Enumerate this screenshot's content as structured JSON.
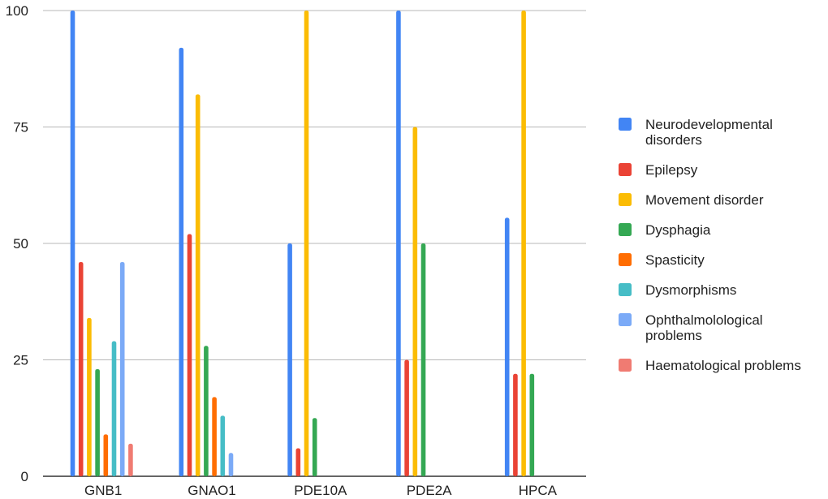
{
  "chart_data": {
    "type": "bar",
    "title": "",
    "xlabel": "",
    "ylabel": "",
    "ylim": [
      0,
      100
    ],
    "yticks": [
      0,
      25,
      50,
      75,
      100
    ],
    "grid": true,
    "legend_position": "right",
    "categories": [
      "GNB1",
      "GNAO1",
      "PDE10A",
      "PDE2A",
      "HPCA"
    ],
    "series": [
      {
        "name": "Neurodevelopmental disorders",
        "name_lines": [
          "Neurodevelopmental",
          "disorders"
        ],
        "color": "#4285F4",
        "values": [
          100,
          92,
          50,
          100,
          55.5
        ]
      },
      {
        "name": "Epilepsy",
        "name_lines": [
          "Epilepsy"
        ],
        "color": "#EA4335",
        "values": [
          46,
          52,
          6,
          25,
          22
        ]
      },
      {
        "name": "Movement disorder",
        "name_lines": [
          "Movement disorder"
        ],
        "color": "#FBBC04",
        "values": [
          34,
          82,
          100,
          75,
          100
        ]
      },
      {
        "name": "Dysphagia",
        "name_lines": [
          "Dysphagia"
        ],
        "color": "#34A853",
        "values": [
          23,
          28,
          12.5,
          50,
          22
        ]
      },
      {
        "name": "Spasticity",
        "name_lines": [
          "Spasticity"
        ],
        "color": "#FF6D01",
        "values": [
          9,
          17,
          0,
          0,
          0
        ]
      },
      {
        "name": "Dysmorphisms",
        "name_lines": [
          "Dysmorphisms"
        ],
        "color": "#46BDC6",
        "values": [
          29,
          13,
          0,
          0,
          0
        ]
      },
      {
        "name": "Ophthalmolological problems",
        "name_lines": [
          "Ophthalmolological",
          "problems"
        ],
        "color": "#7BAAF7",
        "values": [
          46,
          5,
          0,
          0,
          0
        ]
      },
      {
        "name": "Haematological problems",
        "name_lines": [
          "Haematological problems"
        ],
        "color": "#F07B72",
        "values": [
          7,
          0,
          0,
          0,
          0
        ]
      }
    ]
  }
}
